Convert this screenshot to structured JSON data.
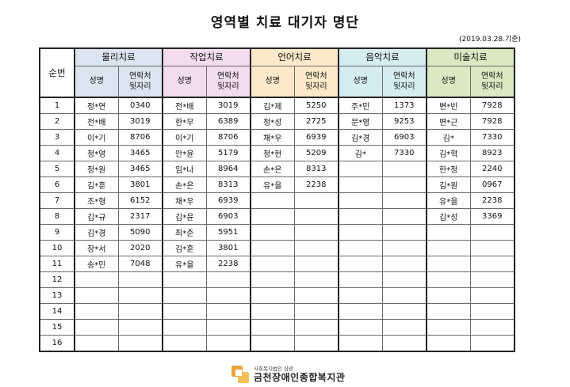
{
  "title": "영역별 치료 대기자 명단",
  "date_note": "(2019.03.28.기준)",
  "number_header": "순번",
  "groups": [
    {
      "name": "물리치료",
      "name_col": "성명",
      "phone_col": "연락처\n뒷자리"
    },
    {
      "name": "작업치료",
      "name_col": "성명",
      "phone_col": "연락처\n뒷자리"
    },
    {
      "name": "언어치료",
      "name_col": "성명",
      "phone_col": "연락처\n뒷자리"
    },
    {
      "name": "음악치료",
      "name_col": "성명",
      "phone_col": "연락처\n뒷자리"
    },
    {
      "name": "미술치료",
      "name_col": "성명",
      "phone_col": "연락처\n뒷자리"
    }
  ],
  "rows": [
    {
      "no": "1",
      "cells": [
        [
          "정*연",
          "0340"
        ],
        [
          "전*배",
          "3019"
        ],
        [
          "김*제",
          "5250"
        ],
        [
          "주*민",
          "1373"
        ],
        [
          "변*빈",
          "7928"
        ]
      ]
    },
    {
      "no": "2",
      "cells": [
        [
          "전*배",
          "3019"
        ],
        [
          "한*무",
          "6389"
        ],
        [
          "정*성",
          "2725"
        ],
        [
          "문*영",
          "9253"
        ],
        [
          "변*근",
          "7928"
        ]
      ]
    },
    {
      "no": "3",
      "cells": [
        [
          "이*기",
          "8706"
        ],
        [
          "이*기",
          "8706"
        ],
        [
          "채*우",
          "6939"
        ],
        [
          "김*경",
          "6903"
        ],
        [
          "김*",
          "7330"
        ]
      ]
    },
    {
      "no": "4",
      "cells": [
        [
          "정*영",
          "3465"
        ],
        [
          "안*윤",
          "5179"
        ],
        [
          "정*현",
          "5209"
        ],
        [
          "김*",
          "7330"
        ],
        [
          "김*혁",
          "8923"
        ]
      ]
    },
    {
      "no": "5",
      "cells": [
        [
          "정*원",
          "3465"
        ],
        [
          "임*나",
          "8964"
        ],
        [
          "손*은",
          "8313"
        ],
        [
          "",
          ""
        ],
        [
          "한*정",
          "2240"
        ]
      ]
    },
    {
      "no": "6",
      "cells": [
        [
          "김*훈",
          "3801"
        ],
        [
          "손*은",
          "8313"
        ],
        [
          "유*을",
          "2238"
        ],
        [
          "",
          ""
        ],
        [
          "김*원",
          "0967"
        ]
      ]
    },
    {
      "no": "7",
      "cells": [
        [
          "조*형",
          "6152"
        ],
        [
          "채*우",
          "6939"
        ],
        [
          "",
          ""
        ],
        [
          "",
          ""
        ],
        [
          "유*을",
          "2238"
        ]
      ]
    },
    {
      "no": "8",
      "cells": [
        [
          "김*규",
          "2317"
        ],
        [
          "김*윤",
          "6903"
        ],
        [
          "",
          ""
        ],
        [
          "",
          ""
        ],
        [
          "김*성",
          "3369"
        ]
      ]
    },
    {
      "no": "9",
      "cells": [
        [
          "김*경",
          "5090"
        ],
        [
          "최*준",
          "5951"
        ],
        [
          "",
          ""
        ],
        [
          "",
          ""
        ],
        [
          "",
          ""
        ]
      ]
    },
    {
      "no": "10",
      "cells": [
        [
          "장*서",
          "2020"
        ],
        [
          "김*훈",
          "3801"
        ],
        [
          "",
          ""
        ],
        [
          "",
          ""
        ],
        [
          "",
          ""
        ]
      ]
    },
    {
      "no": "11",
      "cells": [
        [
          "송*민",
          "7048"
        ],
        [
          "유*을",
          "2238"
        ],
        [
          "",
          ""
        ],
        [
          "",
          ""
        ],
        [
          "",
          ""
        ]
      ]
    },
    {
      "no": "12",
      "cells": [
        [
          "",
          ""
        ],
        [
          "",
          ""
        ],
        [
          "",
          ""
        ],
        [
          "",
          ""
        ],
        [
          "",
          ""
        ]
      ]
    },
    {
      "no": "13",
      "cells": [
        [
          "",
          ""
        ],
        [
          "",
          ""
        ],
        [
          "",
          ""
        ],
        [
          "",
          ""
        ],
        [
          "",
          ""
        ]
      ]
    },
    {
      "no": "14",
      "cells": [
        [
          "",
          ""
        ],
        [
          "",
          ""
        ],
        [
          "",
          ""
        ],
        [
          "",
          ""
        ],
        [
          "",
          ""
        ]
      ]
    },
    {
      "no": "15",
      "cells": [
        [
          "",
          ""
        ],
        [
          "",
          ""
        ],
        [
          "",
          ""
        ],
        [
          "",
          ""
        ],
        [
          "",
          ""
        ]
      ]
    },
    {
      "no": "16",
      "cells": [
        [
          "",
          ""
        ],
        [
          "",
          ""
        ],
        [
          "",
          ""
        ],
        [
          "",
          ""
        ],
        [
          "",
          ""
        ]
      ]
    }
  ],
  "footer": {
    "org_small": "사회복지법인 삼광",
    "org_name": "금천장애인종합복지관",
    "logo_icon": "agency-logo-icon"
  },
  "colors": {
    "physical": "#dbe5f1",
    "occupational": "#f2dcf0",
    "speech": "#fde9c9",
    "music": "#d5ecf1",
    "art": "#d8e9c3"
  }
}
